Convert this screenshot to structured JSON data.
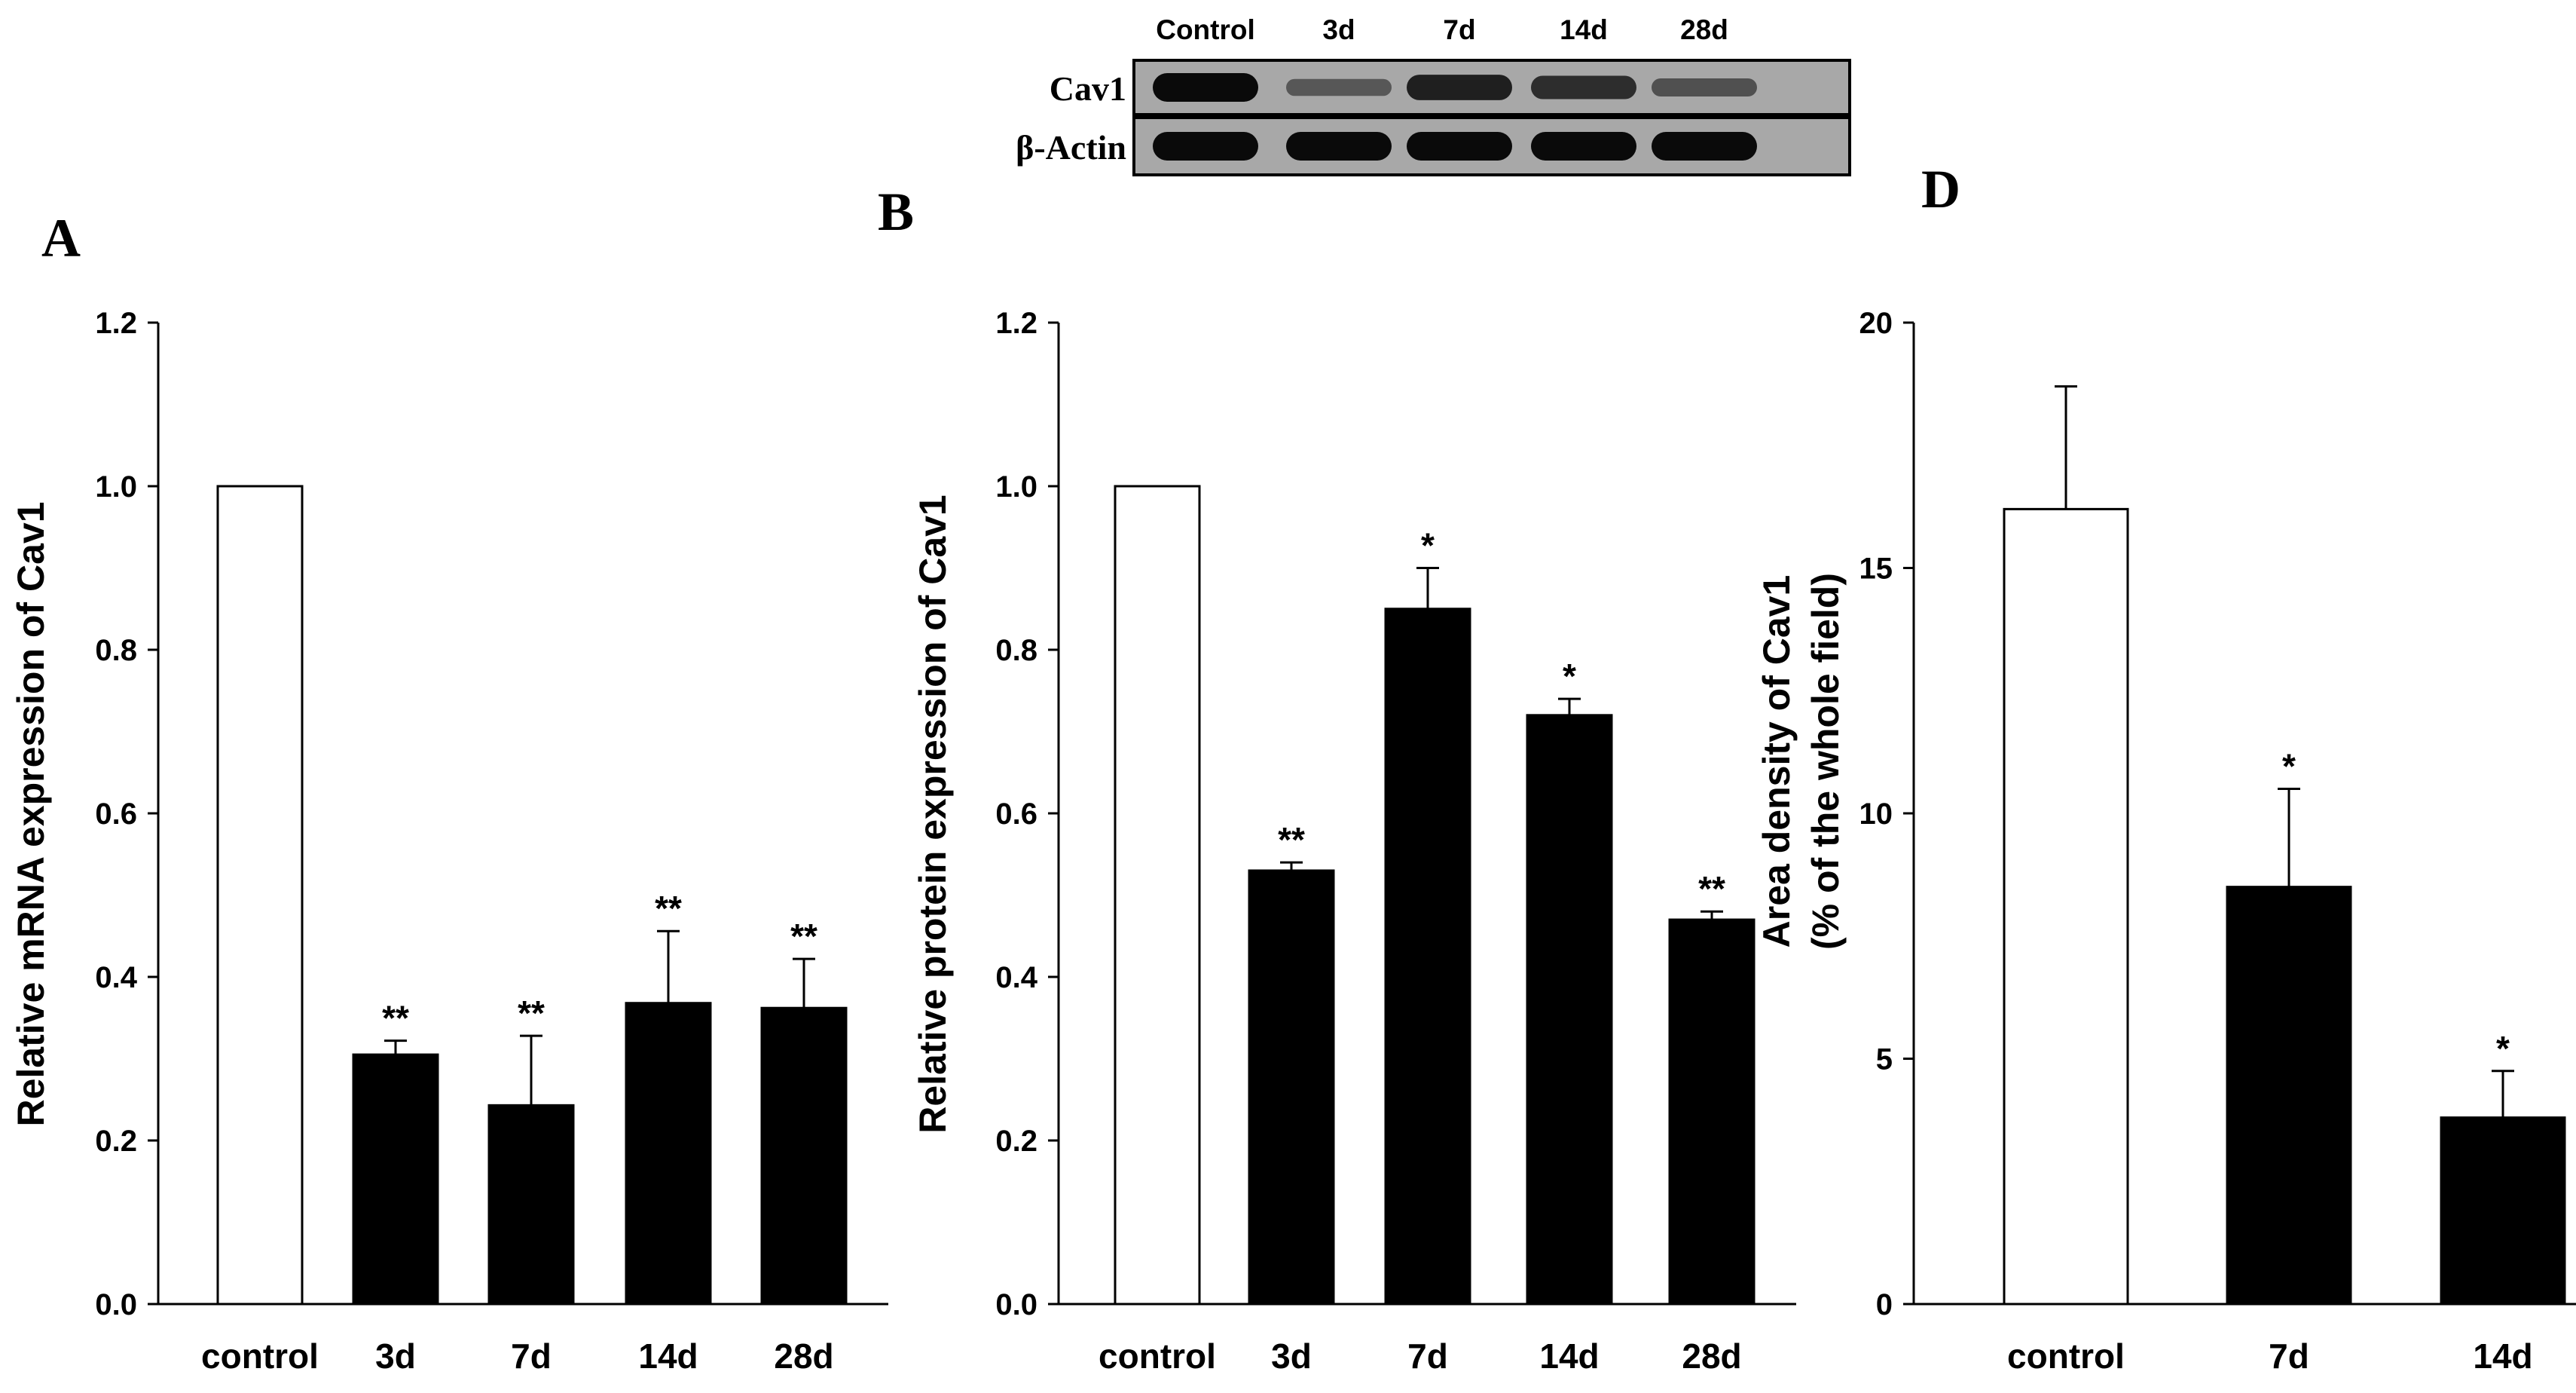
{
  "blot": {
    "lanes": [
      "Control",
      "3d",
      "7d",
      "14d",
      "28d"
    ],
    "rows": [
      {
        "label": "Cav1",
        "band_darkness": [
          1.0,
          0.45,
          0.85,
          0.75,
          0.5
        ]
      },
      {
        "label": "β-Actin",
        "band_darkness": [
          1.0,
          1.0,
          1.0,
          1.0,
          1.0
        ]
      }
    ]
  },
  "chart_data": [
    {
      "panel": "A",
      "type": "bar",
      "categories": [
        "control",
        "3d",
        "7d",
        "14d",
        "28d"
      ],
      "values": [
        1.0,
        0.305,
        0.243,
        0.368,
        0.362
      ],
      "errors": [
        0,
        0.017,
        0.085,
        0.088,
        0.06
      ],
      "significance": [
        "",
        "**",
        "**",
        "**",
        "**"
      ],
      "bar_colors": [
        "#ffffff",
        "#000000",
        "#000000",
        "#000000",
        "#000000"
      ],
      "ylabel": "Relative mRNA expression of Cav1",
      "ylim": [
        0,
        1.2
      ],
      "yticks": [
        "0.0",
        "0.2",
        "0.4",
        "0.6",
        "0.8",
        "1.0",
        "1.2"
      ],
      "grid": false
    },
    {
      "panel": "B",
      "type": "bar",
      "categories": [
        "control",
        "3d",
        "7d",
        "14d",
        "28d"
      ],
      "values": [
        1.0,
        0.53,
        0.85,
        0.72,
        0.47
      ],
      "errors": [
        0,
        0.01,
        0.05,
        0.02,
        0.01
      ],
      "significance": [
        "",
        "**",
        "*",
        "*",
        "**"
      ],
      "bar_colors": [
        "#ffffff",
        "#000000",
        "#000000",
        "#000000",
        "#000000"
      ],
      "ylabel": "Relative protein expression of Cav1",
      "ylim": [
        0,
        1.2
      ],
      "yticks": [
        "0.0",
        "0.2",
        "0.4",
        "0.6",
        "0.8",
        "1.0",
        "1.2"
      ],
      "grid": false
    },
    {
      "panel": "D",
      "type": "bar",
      "categories": [
        "control",
        "7d",
        "14d"
      ],
      "values": [
        16.2,
        8.5,
        3.8
      ],
      "errors": [
        2.5,
        2.0,
        0.95
      ],
      "significance": [
        "",
        "*",
        "*"
      ],
      "bar_colors": [
        "#ffffff",
        "#000000",
        "#000000"
      ],
      "ylabel": [
        "Area density of Cav1",
        "(% of the whole field)"
      ],
      "ylim": [
        0,
        20
      ],
      "yticks": [
        "0",
        "5",
        "10",
        "15",
        "20"
      ],
      "grid": false
    }
  ]
}
